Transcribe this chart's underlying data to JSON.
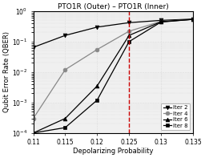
{
  "title": "PTO1R (Outer) – PTO1R (Inner)",
  "xlabel": "Depolarizing Probability",
  "ylabel": "Qubit Error Rate (QBER)",
  "xlim": [
    0.11,
    0.135
  ],
  "ylim_log": [
    -4,
    0
  ],
  "xticks": [
    0.11,
    0.115,
    0.12,
    0.125,
    0.13,
    0.135
  ],
  "vline_x": 0.125,
  "vline_color": "#cc0000",
  "series": [
    {
      "label": "Iter 2",
      "marker": "v",
      "color": "#000000",
      "x": [
        0.11,
        0.115,
        0.12,
        0.125,
        0.13,
        0.135
      ],
      "y": [
        0.065,
        0.16,
        0.3,
        0.42,
        0.5,
        0.55
      ]
    },
    {
      "label": "Iter 4",
      "marker": "o",
      "color": "#888888",
      "x": [
        0.11,
        0.115,
        0.12,
        0.125,
        0.13,
        0.135
      ],
      "y": [
        0.0003,
        0.012,
        0.055,
        0.22,
        0.46,
        0.54
      ]
    },
    {
      "label": "Iter 6",
      "marker": "^",
      "color": "#000000",
      "x": [
        0.11,
        0.115,
        0.12,
        0.125,
        0.13,
        0.135
      ],
      "y": [
        0.0001,
        0.0003,
        0.0035,
        0.16,
        0.45,
        0.54
      ]
    },
    {
      "label": "Iter 8",
      "marker": "s",
      "color": "#000000",
      "x": [
        0.11,
        0.115,
        0.12,
        0.125,
        0.13,
        0.135
      ],
      "y": [
        0.0001,
        0.00015,
        0.0012,
        0.1,
        0.44,
        0.54
      ]
    }
  ],
  "background_color": "#f0f0f0",
  "grid_color": "#cccccc",
  "title_fontsize": 6.5,
  "label_fontsize": 6,
  "tick_fontsize": 5.5,
  "legend_fontsize": 5
}
